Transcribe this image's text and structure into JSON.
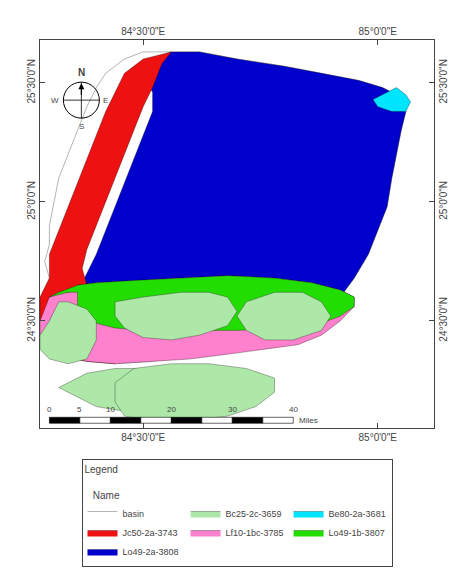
{
  "chart_data": {
    "type": "polygon",
    "xlim": [
      84.28,
      85.12
    ],
    "ylim": [
      24.05,
      25.68
    ],
    "xticks": [
      {
        "value": 84.5,
        "label": "84°30'0\"E"
      },
      {
        "value": 85.0,
        "label": "85°0'0\"E"
      }
    ],
    "yticks": [
      {
        "value": 24.5,
        "label": "24°30'0\"N"
      },
      {
        "value": 25.0,
        "label": "25°0'0\"N"
      },
      {
        "value": 25.5,
        "label": "25°30'0\"N"
      }
    ],
    "grid": false,
    "legend": "bottom",
    "legend_title": "Legend\n\n   Name",
    "legend_order": [
      "basin",
      "Bc25-2c-3659",
      "Be80-2a-3681",
      "Jc50-2a-3743",
      "Lf10-1bc-3785",
      "Lo49-1b-3807",
      "Lo49-2a-3808"
    ],
    "series": [
      {
        "name": "basin",
        "color": "white",
        "polygons": [
          [
            [
              84.56,
              25.63
            ],
            [
              84.62,
              25.63
            ],
            [
              84.7,
              25.6
            ],
            [
              84.8,
              25.57
            ],
            [
              84.88,
              25.54
            ],
            [
              84.96,
              25.51
            ],
            [
              85.01,
              25.48
            ],
            [
              85.05,
              25.44
            ],
            [
              85.06,
              25.38
            ],
            [
              85.05,
              25.3
            ],
            [
              85.04,
              25.2
            ],
            [
              85.03,
              25.1
            ],
            [
              85.02,
              24.98
            ],
            [
              85.0,
              24.88
            ],
            [
              84.98,
              24.78
            ],
            [
              84.95,
              24.68
            ],
            [
              84.92,
              24.6
            ],
            [
              84.88,
              24.54
            ],
            [
              84.83,
              24.48
            ],
            [
              84.76,
              24.42
            ],
            [
              84.68,
              24.38
            ],
            [
              84.6,
              24.35
            ],
            [
              84.52,
              24.33
            ],
            [
              84.44,
              24.32
            ],
            [
              84.38,
              24.33
            ],
            [
              84.33,
              24.35
            ],
            [
              84.3,
              24.38
            ],
            [
              84.28,
              24.42
            ],
            [
              84.28,
              24.5
            ],
            [
              84.3,
              24.6
            ],
            [
              84.3,
              24.68
            ],
            [
              84.29,
              24.75
            ],
            [
              84.3,
              24.82
            ],
            [
              84.3,
              24.9
            ],
            [
              84.31,
              25.0
            ],
            [
              84.32,
              25.1
            ],
            [
              84.34,
              25.2
            ],
            [
              84.36,
              25.3
            ],
            [
              84.38,
              25.4
            ],
            [
              84.4,
              25.48
            ],
            [
              84.42,
              25.54
            ],
            [
              84.46,
              25.6
            ],
            [
              84.5,
              25.63
            ],
            [
              84.56,
              25.63
            ]
          ]
        ]
      },
      {
        "name": "Lo49-2a-3808",
        "color": "#0000cc",
        "polygons": [
          [
            [
              84.56,
              25.63
            ],
            [
              84.62,
              25.63
            ],
            [
              84.7,
              25.6
            ],
            [
              84.8,
              25.57
            ],
            [
              84.88,
              25.54
            ],
            [
              84.96,
              25.51
            ],
            [
              85.01,
              25.48
            ],
            [
              85.05,
              25.44
            ],
            [
              85.06,
              25.38
            ],
            [
              85.05,
              25.3
            ],
            [
              85.04,
              25.2
            ],
            [
              85.03,
              25.1
            ],
            [
              85.02,
              24.98
            ],
            [
              85.0,
              24.88
            ],
            [
              84.98,
              24.78
            ],
            [
              84.95,
              24.68
            ],
            [
              84.92,
              24.6
            ],
            [
              84.88,
              24.54
            ],
            [
              84.83,
              24.48
            ],
            [
              84.76,
              24.45
            ],
            [
              84.68,
              24.45
            ],
            [
              84.62,
              24.46
            ],
            [
              84.56,
              24.46
            ],
            [
              84.5,
              24.46
            ],
            [
              84.44,
              24.47
            ],
            [
              84.4,
              24.49
            ],
            [
              84.37,
              24.52
            ],
            [
              84.36,
              24.56
            ],
            [
              84.36,
              24.62
            ],
            [
              84.38,
              24.7
            ],
            [
              84.4,
              24.78
            ],
            [
              84.42,
              24.88
            ],
            [
              84.44,
              24.98
            ],
            [
              84.46,
              25.08
            ],
            [
              84.48,
              25.18
            ],
            [
              84.5,
              25.28
            ],
            [
              84.52,
              25.38
            ],
            [
              84.52,
              25.46
            ],
            [
              84.5,
              25.54
            ],
            [
              84.52,
              25.6
            ],
            [
              84.56,
              25.63
            ]
          ]
        ]
      },
      {
        "name": "Jc50-2a-3743",
        "color": "#ee1111",
        "polygons": [
          [
            [
              84.56,
              25.63
            ],
            [
              84.5,
              25.6
            ],
            [
              84.46,
              25.54
            ],
            [
              84.44,
              25.46
            ],
            [
              84.42,
              25.38
            ],
            [
              84.4,
              25.28
            ],
            [
              84.38,
              25.18
            ],
            [
              84.36,
              25.08
            ],
            [
              84.34,
              24.98
            ],
            [
              84.32,
              24.88
            ],
            [
              84.3,
              24.78
            ],
            [
              84.3,
              24.68
            ],
            [
              84.28,
              24.6
            ],
            [
              84.28,
              24.5
            ],
            [
              84.28,
              24.42
            ],
            [
              84.3,
              24.38
            ],
            [
              84.33,
              24.35
            ],
            [
              84.38,
              24.33
            ],
            [
              84.44,
              24.32
            ],
            [
              84.44,
              24.4
            ],
            [
              84.42,
              24.5
            ],
            [
              84.4,
              24.58
            ],
            [
              84.38,
              24.65
            ],
            [
              84.37,
              24.72
            ],
            [
              84.38,
              24.8
            ],
            [
              84.4,
              24.9
            ],
            [
              84.42,
              25.0
            ],
            [
              84.44,
              25.1
            ],
            [
              84.46,
              25.2
            ],
            [
              84.48,
              25.3
            ],
            [
              84.5,
              25.4
            ],
            [
              84.52,
              25.48
            ],
            [
              84.54,
              25.58
            ],
            [
              84.56,
              25.63
            ]
          ]
        ]
      },
      {
        "name": "Lf10-1bc-3785",
        "color": "#ff80cc",
        "polygons": [
          [
            [
              84.28,
              24.42
            ],
            [
              84.3,
              24.38
            ],
            [
              84.33,
              24.35
            ],
            [
              84.38,
              24.33
            ],
            [
              84.44,
              24.32
            ],
            [
              84.52,
              24.33
            ],
            [
              84.6,
              24.34
            ],
            [
              84.68,
              24.36
            ],
            [
              84.76,
              24.38
            ],
            [
              84.83,
              24.4
            ],
            [
              84.88,
              24.44
            ],
            [
              84.92,
              24.5
            ],
            [
              84.95,
              24.56
            ],
            [
              84.95,
              24.6
            ],
            [
              84.92,
              24.63
            ],
            [
              84.86,
              24.66
            ],
            [
              84.78,
              24.68
            ],
            [
              84.68,
              24.69
            ],
            [
              84.58,
              24.68
            ],
            [
              84.48,
              24.67
            ],
            [
              84.4,
              24.66
            ],
            [
              84.36,
              24.65
            ],
            [
              84.34,
              24.62
            ],
            [
              84.32,
              24.62
            ],
            [
              84.3,
              24.6
            ],
            [
              84.28,
              24.5
            ],
            [
              84.28,
              24.42
            ]
          ]
        ]
      },
      {
        "name": "Lo49-1b-3807",
        "color": "#22dd00",
        "polygons": [
          [
            [
              84.3,
              24.6
            ],
            [
              84.32,
              24.62
            ],
            [
              84.36,
              24.65
            ],
            [
              84.4,
              24.66
            ],
            [
              84.48,
              24.67
            ],
            [
              84.58,
              24.68
            ],
            [
              84.68,
              24.69
            ],
            [
              84.78,
              24.68
            ],
            [
              84.86,
              24.66
            ],
            [
              84.92,
              24.63
            ],
            [
              84.95,
              24.6
            ],
            [
              84.95,
              24.56
            ],
            [
              84.92,
              24.52
            ],
            [
              84.88,
              24.49
            ],
            [
              84.8,
              24.47
            ],
            [
              84.7,
              24.46
            ],
            [
              84.6,
              24.46
            ],
            [
              84.5,
              24.46
            ],
            [
              84.44,
              24.47
            ],
            [
              84.4,
              24.49
            ],
            [
              84.37,
              24.52
            ],
            [
              84.36,
              24.56
            ],
            [
              84.36,
              24.62
            ],
            [
              84.34,
              24.62
            ],
            [
              84.3,
              24.6
            ]
          ]
        ]
      },
      {
        "name": "Bc25-2c-3659",
        "color": "#aee8a8",
        "polygons": [
          [
            [
              84.28,
              24.44
            ],
            [
              84.3,
              24.5
            ],
            [
              84.32,
              24.58
            ],
            [
              84.34,
              24.58
            ],
            [
              84.38,
              24.55
            ],
            [
              84.4,
              24.5
            ],
            [
              84.4,
              24.42
            ],
            [
              84.38,
              24.34
            ],
            [
              84.34,
              24.32
            ],
            [
              84.3,
              24.34
            ],
            [
              84.28,
              24.38
            ],
            [
              84.28,
              24.44
            ]
          ],
          [
            [
              84.44,
              24.58
            ],
            [
              84.5,
              24.6
            ],
            [
              84.58,
              24.62
            ],
            [
              84.64,
              24.62
            ],
            [
              84.68,
              24.6
            ],
            [
              84.7,
              24.54
            ],
            [
              84.68,
              24.48
            ],
            [
              84.62,
              24.44
            ],
            [
              84.56,
              24.42
            ],
            [
              84.5,
              24.43
            ],
            [
              84.46,
              24.47
            ],
            [
              84.44,
              24.52
            ],
            [
              84.44,
              24.58
            ]
          ],
          [
            [
              84.72,
              24.58
            ],
            [
              84.78,
              24.62
            ],
            [
              84.84,
              24.62
            ],
            [
              84.88,
              24.58
            ],
            [
              84.9,
              24.52
            ],
            [
              84.88,
              24.46
            ],
            [
              84.82,
              24.42
            ],
            [
              84.76,
              24.42
            ],
            [
              84.72,
              24.46
            ],
            [
              84.7,
              24.52
            ],
            [
              84.72,
              24.58
            ]
          ],
          [
            [
              84.32,
              24.22
            ],
            [
              84.36,
              24.18
            ],
            [
              84.4,
              24.14
            ],
            [
              84.46,
              24.12
            ],
            [
              84.52,
              24.12
            ],
            [
              84.58,
              24.14
            ],
            [
              84.62,
              24.18
            ],
            [
              84.64,
              24.22
            ],
            [
              84.62,
              24.26
            ],
            [
              84.58,
              24.28
            ],
            [
              84.52,
              24.3
            ],
            [
              84.44,
              24.3
            ],
            [
              84.38,
              24.28
            ],
            [
              84.34,
              24.24
            ],
            [
              84.32,
              24.22
            ]
          ],
          [
            [
              84.46,
              24.1
            ],
            [
              84.52,
              24.08
            ],
            [
              84.6,
              24.08
            ],
            [
              84.68,
              24.1
            ],
            [
              84.74,
              24.14
            ],
            [
              84.78,
              24.2
            ],
            [
              84.78,
              24.26
            ],
            [
              84.72,
              24.3
            ],
            [
              84.64,
              24.32
            ],
            [
              84.56,
              24.32
            ],
            [
              84.48,
              24.3
            ],
            [
              84.44,
              24.24
            ],
            [
              84.44,
              24.16
            ],
            [
              84.46,
              24.1
            ]
          ]
        ]
      },
      {
        "name": "Be80-2a-3681",
        "color": "#00e5ff",
        "polygons": [
          [
            [
              85.02,
              25.46
            ],
            [
              85.04,
              25.48
            ],
            [
              85.06,
              25.45
            ],
            [
              85.07,
              25.42
            ],
            [
              85.06,
              25.38
            ],
            [
              85.03,
              25.38
            ],
            [
              85.0,
              25.4
            ],
            [
              84.99,
              25.43
            ],
            [
              85.02,
              25.46
            ]
          ]
        ]
      }
    ],
    "compass": [
      "N",
      "S",
      "E",
      "W"
    ],
    "scale_bar": {
      "x0": 84.3,
      "y0": 24.07,
      "length": 0.52,
      "height": 0.025,
      "segments": 8,
      "ticks": [
        0,
        5,
        10,
        20,
        30,
        40
      ],
      "max": 40,
      "unit": "Miles"
    }
  }
}
